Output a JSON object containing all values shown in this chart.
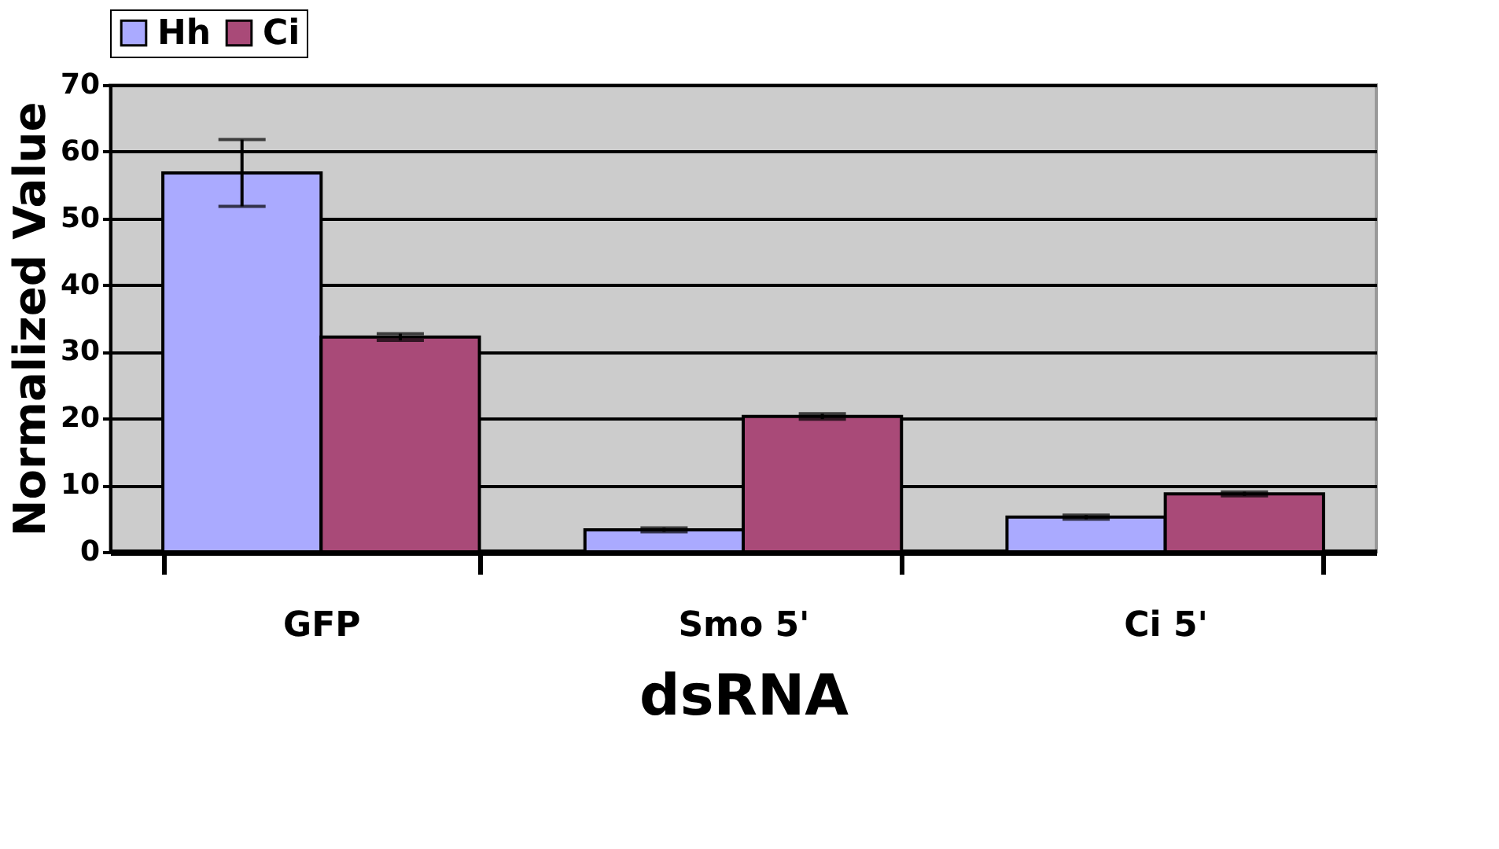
{
  "chart_data": {
    "type": "bar",
    "xlabel": "dsRNA",
    "ylabel": "Normalized Value",
    "categories": [
      "GFP",
      "Smo 5'",
      "Ci 5'"
    ],
    "series": [
      {
        "name": "Hh",
        "color": "#aaaaff",
        "values": [
          56.8,
          3.3,
          5.2
        ],
        "errors": [
          5,
          0.3,
          0.3
        ]
      },
      {
        "name": "Ci",
        "color": "#a94a78",
        "values": [
          32.2,
          20.3,
          8.7
        ],
        "errors": [
          0.5,
          0.4,
          0.3
        ]
      }
    ],
    "ylim": [
      0,
      70
    ],
    "yticks": [
      0,
      10,
      20,
      30,
      40,
      50,
      60,
      70
    ],
    "grid": "y",
    "legend": "top"
  }
}
